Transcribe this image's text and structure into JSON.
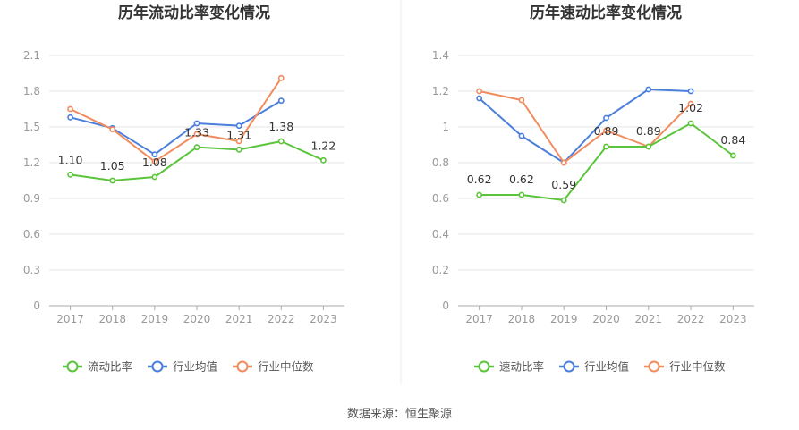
{
  "source": "数据来源：恒生聚源",
  "chart_data": [
    {
      "type": "line",
      "title": "历年流动比率变化情况",
      "categories": [
        "2017",
        "2018",
        "2019",
        "2020",
        "2021",
        "2022",
        "2023"
      ],
      "yticks": [
        "0",
        "0.3",
        "0.6",
        "0.9",
        "1.2",
        "1.5",
        "1.8",
        "2.1"
      ],
      "ylim": [
        0,
        2.1
      ],
      "grid": true,
      "legend_position": "bottom",
      "series": [
        {
          "name": "流动比率",
          "color": "#5ac53a",
          "labeled": true,
          "values": [
            1.1,
            1.05,
            1.08,
            1.33,
            1.31,
            1.38,
            1.22
          ],
          "labels": [
            "1.10",
            "1.05",
            "1.08",
            "1.33",
            "1.31",
            "1.38",
            "1.22"
          ]
        },
        {
          "name": "行业均值",
          "color": "#4a7fdc",
          "labeled": false,
          "values": [
            1.58,
            1.49,
            1.27,
            1.53,
            1.51,
            1.72,
            null
          ]
        },
        {
          "name": "行业中位数",
          "color": "#f28c5e",
          "labeled": false,
          "values": [
            1.65,
            1.48,
            1.21,
            1.44,
            1.38,
            1.91,
            null
          ]
        }
      ]
    },
    {
      "type": "line",
      "title": "历年速动比率变化情况",
      "categories": [
        "2017",
        "2018",
        "2019",
        "2020",
        "2021",
        "2022",
        "2023"
      ],
      "yticks": [
        "0",
        "0.2",
        "0.4",
        "0.6",
        "0.8",
        "1",
        "1.2",
        "1.4"
      ],
      "ylim": [
        0,
        1.4
      ],
      "grid": true,
      "legend_position": "bottom",
      "series": [
        {
          "name": "速动比率",
          "color": "#5ac53a",
          "labeled": true,
          "values": [
            0.62,
            0.62,
            0.59,
            0.89,
            0.89,
            1.02,
            0.84
          ],
          "labels": [
            "0.62",
            "0.62",
            "0.59",
            "0.89",
            "0.89",
            "1.02",
            "0.84"
          ]
        },
        {
          "name": "行业均值",
          "color": "#4a7fdc",
          "labeled": false,
          "values": [
            1.16,
            0.95,
            0.8,
            1.05,
            1.21,
            1.2,
            null
          ]
        },
        {
          "name": "行业中位数",
          "color": "#f28c5e",
          "labeled": false,
          "values": [
            1.2,
            1.15,
            0.8,
            0.98,
            0.89,
            1.13,
            null
          ]
        }
      ]
    }
  ]
}
